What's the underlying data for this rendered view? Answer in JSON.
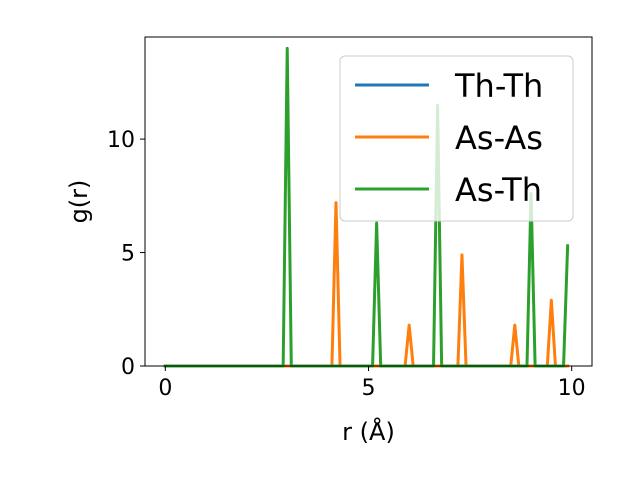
{
  "chart_data": {
    "type": "line",
    "xlabel": "r (Å)",
    "ylabel": "g(r)",
    "xlim": [
      -0.5,
      10.5
    ],
    "ylim": [
      0,
      14.5
    ],
    "xticks": [
      0,
      5,
      10
    ],
    "yticks": [
      0,
      5,
      10
    ],
    "grid": false,
    "legend_position": "top-right",
    "series": [
      {
        "name": "Th-Th",
        "color": "#1f77b4",
        "x": [
          0,
          9.9
        ],
        "y": [
          0,
          0
        ]
      },
      {
        "name": "As-As",
        "color": "#ff7f0e",
        "x": [
          0,
          4.1,
          4.2,
          4.3,
          5.9,
          6.0,
          6.1,
          7.2,
          7.3,
          7.4,
          8.5,
          8.6,
          8.7,
          9.4,
          9.5,
          9.6,
          9.9
        ],
        "y": [
          0,
          0,
          7.2,
          0,
          0,
          1.8,
          0,
          0,
          4.9,
          0,
          0,
          1.8,
          0,
          0,
          2.9,
          0,
          0
        ]
      },
      {
        "name": "As-Th",
        "color": "#2ca02c",
        "x": [
          0,
          2.9,
          3.0,
          3.1,
          5.1,
          5.2,
          5.3,
          6.6,
          6.7,
          6.8,
          8.9,
          9.0,
          9.1,
          9.8,
          9.9
        ],
        "y": [
          0,
          0,
          14.0,
          0,
          0,
          6.3,
          0,
          0,
          11.5,
          0,
          0,
          7.6,
          0,
          0,
          5.3
        ]
      }
    ]
  }
}
